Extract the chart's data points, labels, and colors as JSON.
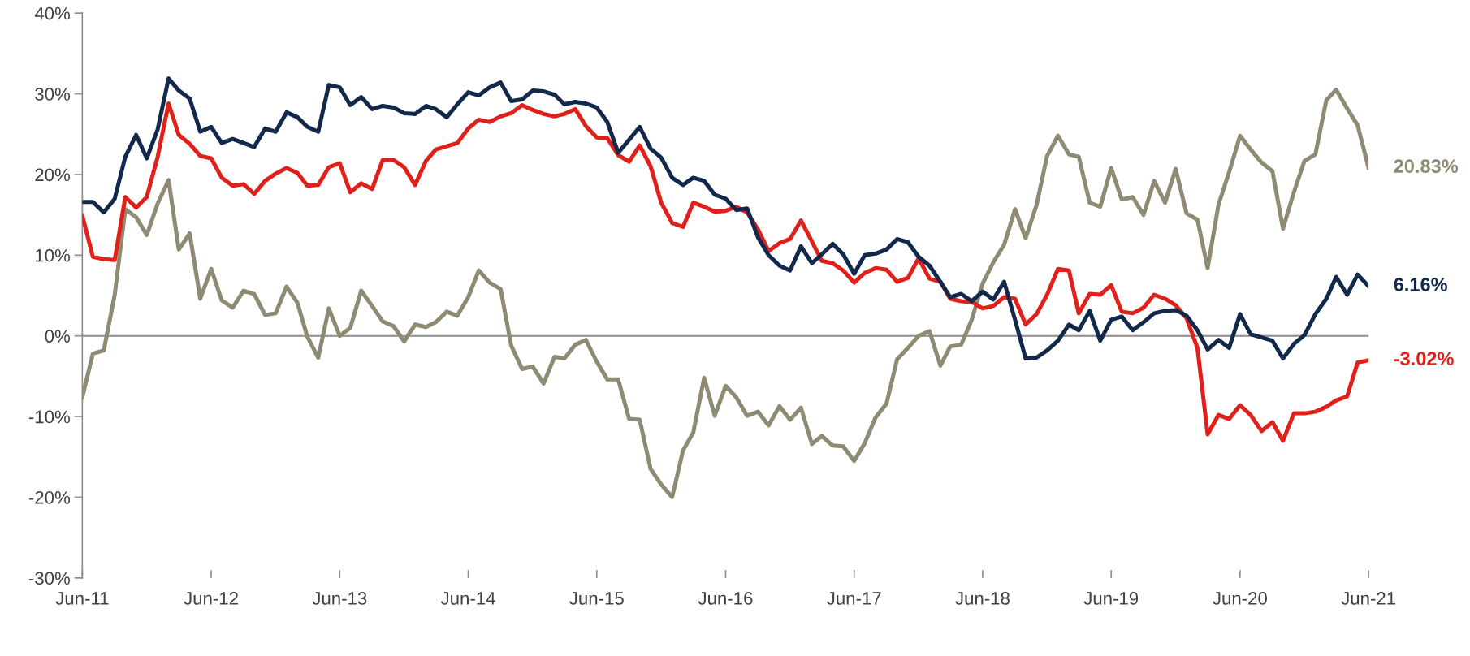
{
  "chart_data": {
    "type": "line",
    "x": [
      "2011-06",
      "2011-07",
      "2011-08",
      "2011-09",
      "2011-10",
      "2011-11",
      "2011-12",
      "2012-01",
      "2012-02",
      "2012-03",
      "2012-04",
      "2012-05",
      "2012-06",
      "2012-07",
      "2012-08",
      "2012-09",
      "2012-10",
      "2012-11",
      "2012-12",
      "2013-01",
      "2013-02",
      "2013-03",
      "2013-04",
      "2013-05",
      "2013-06",
      "2013-07",
      "2013-08",
      "2013-09",
      "2013-10",
      "2013-11",
      "2013-12",
      "2014-01",
      "2014-02",
      "2014-03",
      "2014-04",
      "2014-05",
      "2014-06",
      "2014-07",
      "2014-08",
      "2014-09",
      "2014-10",
      "2014-11",
      "2014-12",
      "2015-01",
      "2015-02",
      "2015-03",
      "2015-04",
      "2015-05",
      "2015-06",
      "2015-07",
      "2015-08",
      "2015-09",
      "2015-10",
      "2015-11",
      "2015-12",
      "2016-01",
      "2016-02",
      "2016-03",
      "2016-04",
      "2016-05",
      "2016-06",
      "2016-07",
      "2016-08",
      "2016-09",
      "2016-10",
      "2016-11",
      "2016-12",
      "2017-01",
      "2017-02",
      "2017-03",
      "2017-04",
      "2017-05",
      "2017-06",
      "2017-07",
      "2017-08",
      "2017-09",
      "2017-10",
      "2017-11",
      "2017-12",
      "2018-01",
      "2018-02",
      "2018-03",
      "2018-04",
      "2018-05",
      "2018-06",
      "2018-07",
      "2018-08",
      "2018-09",
      "2018-10",
      "2018-11",
      "2018-12",
      "2019-01",
      "2019-02",
      "2019-03",
      "2019-04",
      "2019-05",
      "2019-06",
      "2019-07",
      "2019-08",
      "2019-09",
      "2019-10",
      "2019-11",
      "2019-12",
      "2020-01",
      "2020-02",
      "2020-03",
      "2020-04",
      "2020-05",
      "2020-06",
      "2020-07",
      "2020-08",
      "2020-09",
      "2020-10",
      "2020-11",
      "2020-12",
      "2021-01",
      "2021-02",
      "2021-03",
      "2021-04",
      "2021-05",
      "2021-06"
    ],
    "series": [
      {
        "color": "#8f8a73",
        "values": [
          -7.6,
          -2.2,
          -1.8,
          5.1,
          15.7,
          14.7,
          12.5,
          16.4,
          19.3,
          10.7,
          12.7,
          4.6,
          8.3,
          4.4,
          3.5,
          5.6,
          5.2,
          2.6,
          2.8,
          6.1,
          4.1,
          -0.1,
          -2.7,
          3.4,
          0.0,
          1.0,
          5.6,
          3.7,
          1.8,
          1.2,
          -0.7,
          1.4,
          1.1,
          1.7,
          3.0,
          2.5,
          4.8,
          8.1,
          6.6,
          5.8,
          -1.2,
          -4.1,
          -3.8,
          -5.9,
          -2.6,
          -2.8,
          -1.1,
          -0.5,
          -3.2,
          -5.4,
          -5.4,
          -10.3,
          -10.4,
          -16.5,
          -18.4,
          -20.0,
          -14.2,
          -12.0,
          -5.2,
          -9.9,
          -6.2,
          -7.6,
          -9.9,
          -9.4,
          -11.1,
          -8.7,
          -10.4,
          -8.9,
          -13.4,
          -12.4,
          -13.6,
          -13.7,
          -15.5,
          -13.3,
          -10.1,
          -8.4,
          -2.9,
          -1.5,
          0.0,
          0.6,
          -3.7,
          -1.3,
          -1.1,
          2.0,
          6.5,
          9.1,
          11.3,
          15.7,
          12.1,
          16.2,
          22.3,
          24.8,
          22.5,
          22.2,
          16.5,
          16.0,
          20.8,
          16.9,
          17.2,
          15.0,
          19.2,
          16.5,
          20.7,
          15.2,
          14.4,
          8.4,
          16.3,
          20.3,
          24.8,
          23.1,
          21.5,
          20.4,
          13.3,
          17.8,
          21.7,
          22.5,
          29.2,
          30.5,
          28.2,
          26.1,
          20.83
        ]
      },
      {
        "color": "#e0201b",
        "values": [
          14.9,
          9.8,
          9.5,
          9.4,
          17.2,
          15.9,
          17.2,
          22.2,
          28.8,
          24.9,
          23.8,
          22.3,
          22.0,
          19.6,
          18.6,
          18.8,
          17.6,
          19.2,
          20.1,
          20.8,
          20.2,
          18.6,
          18.7,
          20.9,
          21.4,
          17.8,
          18.9,
          18.2,
          21.8,
          21.8,
          20.9,
          18.7,
          21.7,
          23.1,
          23.5,
          23.9,
          25.7,
          26.8,
          26.5,
          27.2,
          27.6,
          28.6,
          28.0,
          27.5,
          27.2,
          27.5,
          28.1,
          26.0,
          24.6,
          24.5,
          22.4,
          21.6,
          23.6,
          21.0,
          16.5,
          14.0,
          13.5,
          16.5,
          16.0,
          15.4,
          15.5,
          16.0,
          15.3,
          13.2,
          10.5,
          11.5,
          12.0,
          14.3,
          11.7,
          9.3,
          9.0,
          8.1,
          6.6,
          7.8,
          8.4,
          8.2,
          6.7,
          7.2,
          9.6,
          7.1,
          6.7,
          4.6,
          4.3,
          4.2,
          3.4,
          3.7,
          4.8,
          4.6,
          1.4,
          2.7,
          5.1,
          8.3,
          8.1,
          2.8,
          5.2,
          5.1,
          6.3,
          3.0,
          2.8,
          3.5,
          5.1,
          4.6,
          3.8,
          2.2,
          -1.5,
          -12.2,
          -9.8,
          -10.3,
          -8.6,
          -9.8,
          -11.8,
          -10.7,
          -13.0,
          -9.6,
          -9.6,
          -9.4,
          -8.8,
          -8.0,
          -7.5,
          -3.3,
          -3.02
        ]
      },
      {
        "color": "#13294b",
        "values": [
          16.6,
          16.6,
          15.3,
          17.0,
          22.2,
          24.9,
          22.0,
          25.6,
          31.9,
          30.4,
          29.4,
          25.3,
          25.9,
          23.9,
          24.4,
          23.9,
          23.4,
          25.7,
          25.3,
          27.7,
          27.1,
          25.9,
          25.3,
          31.1,
          30.8,
          28.6,
          29.6,
          28.1,
          28.5,
          28.3,
          27.6,
          27.5,
          28.5,
          28.1,
          27.1,
          28.7,
          30.2,
          29.8,
          30.8,
          31.4,
          29.1,
          29.3,
          30.4,
          30.3,
          29.9,
          28.7,
          29.0,
          28.8,
          28.3,
          26.5,
          22.7,
          24.3,
          25.9,
          23.2,
          22.1,
          19.6,
          18.7,
          19.6,
          19.2,
          17.5,
          17.0,
          15.6,
          15.8,
          12.2,
          10.0,
          8.7,
          8.1,
          11.1,
          9.0,
          10.1,
          11.4,
          10.1,
          7.7,
          10.0,
          10.2,
          10.7,
          12.0,
          11.6,
          9.8,
          8.7,
          6.7,
          4.8,
          5.2,
          4.3,
          5.5,
          4.5,
          6.7,
          2.0,
          -2.8,
          -2.7,
          -1.8,
          -0.6,
          1.4,
          0.7,
          3.1,
          -0.6,
          2.0,
          2.4,
          0.7,
          1.7,
          2.8,
          3.1,
          3.2,
          2.5,
          0.7,
          -1.7,
          -0.5,
          -1.5,
          2.7,
          0.2,
          -0.2,
          -0.6,
          -2.8,
          -1.0,
          0.1,
          2.7,
          4.6,
          7.3,
          5.1,
          7.6,
          6.16
        ]
      }
    ],
    "annotations": [
      {
        "text": "20.83%",
        "x": "2021-06",
        "y": 20.83
      },
      {
        "text": "-3.02%",
        "x": "2021-06",
        "y": -3.02
      },
      {
        "text": "6.16%",
        "x": "2021-06",
        "y": 6.16
      }
    ],
    "xlim": [
      "2011-06",
      "2021-06"
    ],
    "xticks": [
      {
        "value": "2011-06",
        "label": "Jun-11"
      },
      {
        "value": "2012-06",
        "label": "Jun-12"
      },
      {
        "value": "2013-06",
        "label": "Jun-13"
      },
      {
        "value": "2014-06",
        "label": "Jun-14"
      },
      {
        "value": "2015-06",
        "label": "Jun-15"
      },
      {
        "value": "2016-06",
        "label": "Jun-16"
      },
      {
        "value": "2017-06",
        "label": "Jun-17"
      },
      {
        "value": "2018-06",
        "label": "Jun-18"
      },
      {
        "value": "2019-06",
        "label": "Jun-19"
      },
      {
        "value": "2020-06",
        "label": "Jun-20"
      },
      {
        "value": "2021-06",
        "label": "Jun-21"
      }
    ],
    "ylim": [
      -30,
      40
    ],
    "yticks": [
      {
        "value": -30,
        "label": "-30%"
      },
      {
        "value": -20,
        "label": "-20%"
      },
      {
        "value": -10,
        "label": "-10%"
      },
      {
        "value": 0,
        "label": "0%"
      },
      {
        "value": 10,
        "label": "10%"
      },
      {
        "value": 20,
        "label": "20%"
      },
      {
        "value": 30,
        "label": "30%"
      },
      {
        "value": 40,
        "label": "40%"
      }
    ],
    "ref_lines": [
      {
        "axis": "y",
        "value": 0,
        "color": "#8c8c8c"
      }
    ],
    "grid": false,
    "marker": "none",
    "line_style": "solid"
  }
}
